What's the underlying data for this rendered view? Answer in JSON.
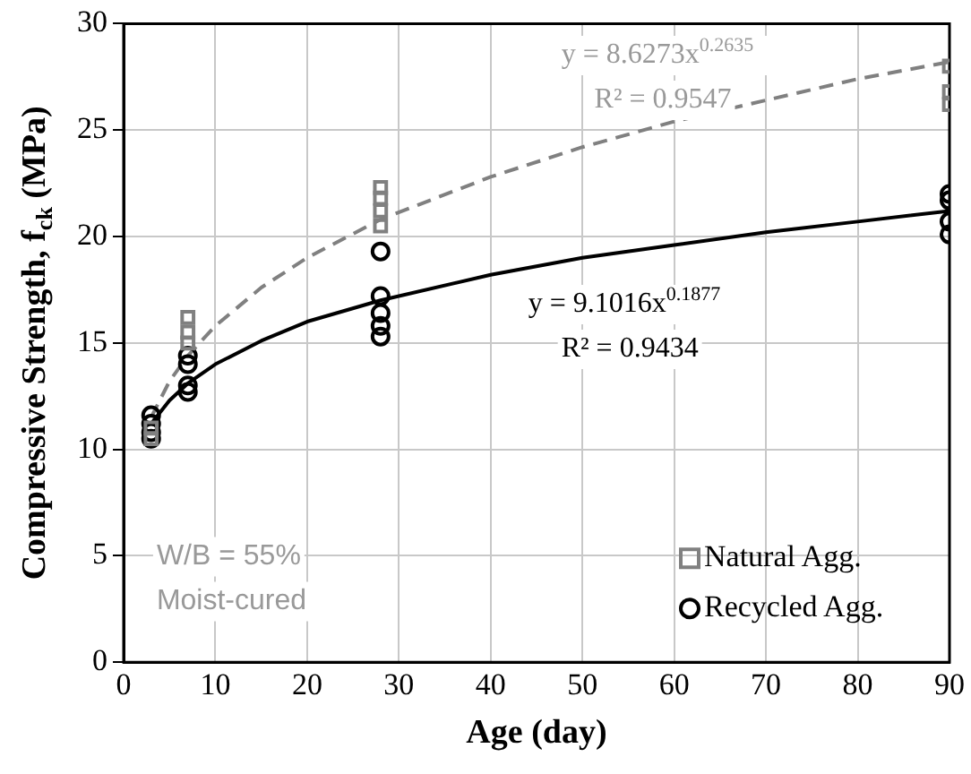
{
  "chart_data": {
    "type": "scatter",
    "xlabel": "Age (day)",
    "ylabel": "Compressive Strength, f$_{ck}$ (MPa)",
    "xlim": [
      0,
      90
    ],
    "xticks": [
      0,
      10,
      20,
      30,
      40,
      50,
      60,
      70,
      80,
      90
    ],
    "ylim": [
      0,
      30
    ],
    "yticks": [
      0,
      5,
      10,
      15,
      20,
      25,
      30
    ],
    "grid": true,
    "legend": "bottom right",
    "series": [
      {
        "name": "Natural Agg.",
        "color": "#808080",
        "marker": "square",
        "x": [
          3,
          3,
          7,
          7,
          7,
          28,
          28,
          28,
          28,
          90,
          90,
          90
        ],
        "values": [
          10.5,
          11,
          15,
          15.5,
          16.2,
          20.5,
          21.2,
          21.8,
          22.3,
          28,
          26.8,
          26.2
        ]
      },
      {
        "name": "Recycled Agg.",
        "color": "#000000",
        "marker": "circle",
        "x": [
          3,
          3,
          3,
          3,
          7,
          7,
          7,
          7,
          28,
          28,
          28,
          28,
          28,
          90,
          90,
          90,
          90
        ],
        "values": [
          10.5,
          10.8,
          11.2,
          11.6,
          12.7,
          13,
          14,
          14.4,
          15.3,
          15.8,
          16.4,
          17.2,
          19.3,
          22,
          21.7,
          20.7,
          20.1
        ]
      },
      {
        "type": "line",
        "color": "#808080",
        "line_style": "dashed",
        "marker": "none",
        "x": [
          3,
          5,
          7,
          10,
          15,
          20,
          28,
          40,
          50,
          60,
          70,
          80,
          90
        ],
        "values": [
          11.5,
          13.2,
          14.4,
          15.8,
          17.6,
          19.0,
          20.8,
          22.8,
          24.2,
          25.4,
          26.4,
          27.4,
          28.2
        ]
      },
      {
        "type": "line",
        "color": "#000000",
        "line_style": "solid",
        "marker": "none",
        "x": [
          3,
          5,
          7,
          10,
          15,
          20,
          28,
          40,
          50,
          60,
          70,
          80,
          90
        ],
        "values": [
          11.2,
          12.3,
          13.1,
          14.0,
          15.1,
          16.0,
          17.0,
          18.2,
          19.0,
          19.6,
          20.2,
          20.7,
          21.2
        ]
      }
    ],
    "annotations": [
      "y = 8.6273x$^{0.2635}$",
      "R² = 0.9547",
      "y = 9.1016x$^{0.1877}$",
      "R² = 0.9434",
      "W/B = 55%",
      "Moist-cured"
    ]
  }
}
